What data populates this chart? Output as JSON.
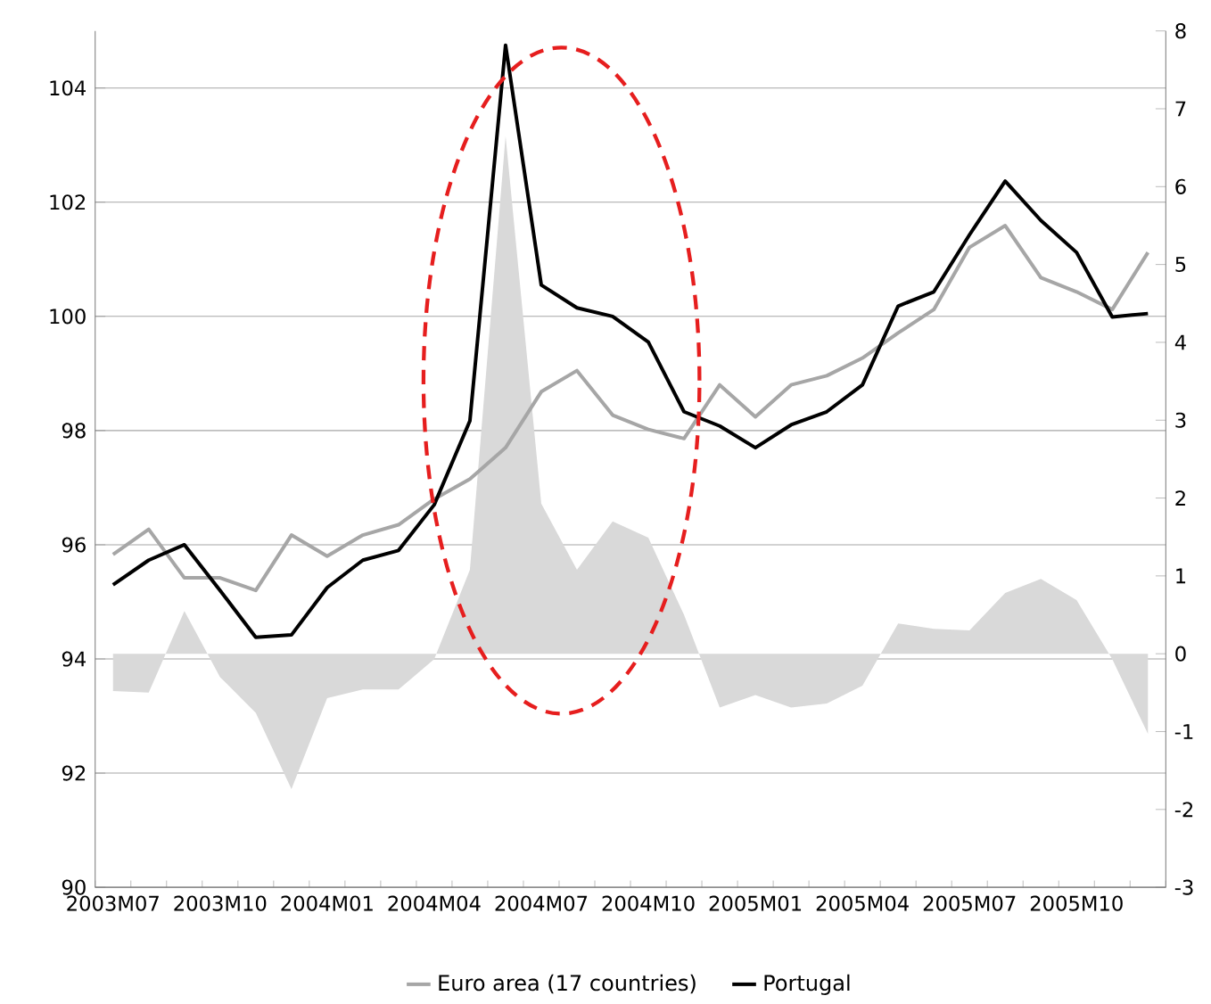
{
  "chart_data": {
    "type": "line",
    "categories": [
      "2003M07",
      null,
      null,
      "2003M10",
      null,
      null,
      "2004M01",
      null,
      null,
      "2004M04",
      null,
      null,
      "2004M07",
      null,
      null,
      "2004M10",
      null,
      null,
      "2005M01",
      null,
      null,
      "2005M04",
      null,
      null,
      "2005M07",
      null,
      null,
      "2005M10",
      null,
      null
    ],
    "series": [
      {
        "type": "area",
        "axis": "y2",
        "color": "#d9d9d9",
        "values": [
          -0.48,
          -0.5,
          0.55,
          -0.3,
          -0.76,
          -1.74,
          -0.57,
          -0.46,
          -0.46,
          -0.07,
          1.08,
          6.65,
          1.93,
          1.08,
          1.7,
          1.49,
          0.5,
          -0.69,
          -0.53,
          -0.69,
          -0.64,
          -0.41,
          0.39,
          0.32,
          0.3,
          0.78,
          0.96,
          0.69,
          -0.07,
          -1.03
        ]
      },
      {
        "name": "Euro area (17 countries)",
        "color": "#a6a6a6",
        "values": [
          95.83,
          96.27,
          95.42,
          95.42,
          95.2,
          96.17,
          95.8,
          96.17,
          96.35,
          96.8,
          97.15,
          97.7,
          98.68,
          99.05,
          98.27,
          98.02,
          97.86,
          98.8,
          98.24,
          98.8,
          98.96,
          99.27,
          99.71,
          100.12,
          101.21,
          101.59,
          100.68,
          100.43,
          100.12,
          101.12
        ]
      },
      {
        "name": "Portugal",
        "color": "#000000",
        "values": [
          95.3,
          95.73,
          96.0,
          95.2,
          94.38,
          94.42,
          95.25,
          95.73,
          95.9,
          96.7,
          98.17,
          104.75,
          100.55,
          100.15,
          100.0,
          99.55,
          98.33,
          98.08,
          97.7,
          98.1,
          98.33,
          98.8,
          100.18,
          100.43,
          101.43,
          102.37,
          101.68,
          101.12,
          99.99,
          100.05
        ]
      }
    ],
    "ylim": [
      90,
      105
    ],
    "yticks": [
      90,
      92,
      94,
      96,
      98,
      100,
      102,
      104
    ],
    "y2lim": [
      -3,
      8
    ],
    "y2ticks": [
      -3,
      -2,
      -1,
      0,
      1,
      2,
      3,
      4,
      5,
      6,
      7,
      8
    ],
    "grid": "y",
    "legend": "bottom",
    "marker": "none",
    "line_style": "solid"
  }
}
